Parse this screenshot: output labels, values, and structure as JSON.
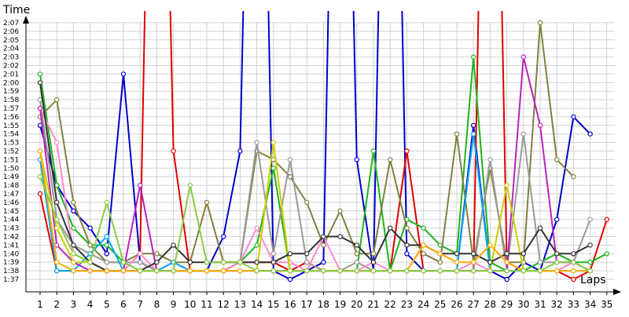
{
  "chart_data": {
    "type": "line",
    "title": "",
    "ylabel": "Time",
    "xlabel": "Laps",
    "x": [
      1,
      2,
      3,
      4,
      5,
      6,
      7,
      8,
      9,
      10,
      11,
      12,
      13,
      14,
      15,
      16,
      17,
      18,
      19,
      20,
      21,
      22,
      23,
      24,
      25,
      26,
      27,
      28,
      29,
      30,
      31,
      32,
      33,
      34,
      35
    ],
    "xlim": [
      1,
      35
    ],
    "y_ticks": [
      "1:37",
      "1:38",
      "1:39",
      "1:40",
      "1:41",
      "1:42",
      "1:43",
      "1:44",
      "1:45",
      "1:46",
      "1:47",
      "1:48",
      "1:49",
      "1:50",
      "1:51",
      "1:52",
      "1:53",
      "1:54",
      "1:55",
      "1:56",
      "1:57",
      "1:58",
      "1:59",
      "2:00",
      "2:01",
      "2:02",
      "2:03",
      "2:04",
      "2:05",
      "2:06",
      "2:07"
    ],
    "ylim_seconds": [
      97,
      127
    ],
    "grid": true,
    "legend": "none",
    "series": [
      {
        "color": "#0000cc",
        "values": [
          115,
          108,
          105,
          103,
          100,
          121,
          99,
          98,
          98,
          98,
          98,
          102,
          112,
          200,
          98,
          97,
          98,
          99,
          200,
          111,
          98,
          200,
          100,
          98,
          98,
          98,
          115,
          98,
          97,
          99,
          98,
          104,
          116,
          114,
          null
        ]
      },
      {
        "color": "#e00000",
        "values": [
          107,
          98,
          98,
          98,
          98,
          98,
          100,
          200,
          112,
          98,
          98,
          98,
          99,
          99,
          99,
          98,
          99,
          98,
          98,
          98,
          98,
          98,
          112,
          98,
          98,
          98,
          98,
          200,
          99,
          98,
          98,
          98,
          97,
          98,
          104
        ]
      },
      {
        "color": "#1eb41e",
        "values": [
          121,
          108,
          103,
          101,
          101,
          99,
          98,
          98,
          98,
          98,
          98,
          98,
          99,
          101,
          110,
          98,
          98,
          98,
          98,
          98,
          112,
          98,
          104,
          103,
          101,
          100,
          123,
          99,
          98,
          98,
          99,
          100,
          99,
          99,
          100
        ]
      },
      {
        "color": "#808040",
        "values": [
          116,
          118,
          106,
          101,
          99,
          99,
          100,
          100,
          99,
          99,
          106,
          99,
          99,
          112,
          111,
          109,
          106,
          101,
          105,
          100,
          100,
          111,
          103,
          100,
          99,
          114,
          99,
          110,
          99,
          99,
          127,
          111,
          109,
          null,
          null
        ]
      },
      {
        "color": "#9a9a9a",
        "values": [
          118,
          104,
          101,
          100,
          99,
          99,
          99,
          98,
          98,
          98,
          98,
          98,
          99,
          113,
          100,
          111,
          99,
          98,
          98,
          99,
          98,
          98,
          98,
          98,
          98,
          98,
          98,
          111,
          98,
          114,
          99,
          99,
          99,
          104,
          null
        ]
      },
      {
        "color": "#ff88cc",
        "values": [
          117,
          113,
          100,
          99,
          98,
          98,
          100,
          98,
          99,
          98,
          98,
          98,
          99,
          103,
          99,
          99,
          98,
          102,
          98,
          98,
          99,
          98,
          98,
          98,
          98,
          98,
          99,
          98,
          98,
          98,
          98,
          98,
          99,
          98,
          null
        ]
      },
      {
        "color": "#00aaee",
        "values": [
          111,
          98,
          98,
          100,
          102,
          98,
          98,
          98,
          99,
          98,
          98,
          98,
          98,
          98,
          98,
          98,
          98,
          98,
          98,
          98,
          98,
          98,
          98,
          98,
          98,
          98,
          114,
          98,
          98,
          98,
          98,
          98,
          98,
          98,
          null
        ]
      },
      {
        "color": "#bb22bb",
        "values": [
          117,
          101,
          99,
          98,
          98,
          98,
          108,
          98,
          98,
          98,
          98,
          98,
          98,
          98,
          98,
          98,
          98,
          98,
          98,
          98,
          98,
          98,
          98,
          98,
          98,
          98,
          98,
          98,
          98,
          123,
          115,
          99,
          99,
          98,
          null
        ]
      },
      {
        "color": "#cccc00",
        "values": [
          112,
          103,
          99,
          99,
          98,
          98,
          98,
          98,
          98,
          98,
          98,
          98,
          98,
          98,
          113,
          98,
          98,
          98,
          98,
          98,
          98,
          98,
          98,
          98,
          98,
          98,
          98,
          98,
          108,
          98,
          98,
          98,
          98,
          98,
          null
        ]
      },
      {
        "color": "#333333",
        "values": [
          120,
          106,
          101,
          99,
          98,
          98,
          98,
          99,
          101,
          99,
          99,
          99,
          99,
          99,
          99,
          100,
          100,
          102,
          102,
          101,
          99,
          103,
          101,
          101,
          100,
          100,
          100,
          99,
          100,
          100,
          103,
          100,
          100,
          101,
          null
        ]
      },
      {
        "color": "#ffaa00",
        "values": [
          112,
          99,
          98,
          98,
          98,
          98,
          98,
          98,
          98,
          98,
          98,
          98,
          98,
          98,
          98,
          98,
          98,
          98,
          98,
          98,
          98,
          98,
          98,
          101,
          100,
          99,
          99,
          101,
          99,
          98,
          98,
          98,
          98,
          98,
          null
        ]
      },
      {
        "color": "#88cc44",
        "values": [
          109,
          104,
          100,
          99,
          106,
          99,
          98,
          98,
          98,
          108,
          99,
          99,
          99,
          98,
          98,
          98,
          98,
          98,
          98,
          98,
          98,
          98,
          98,
          98,
          98,
          98,
          98,
          98,
          98,
          98,
          98,
          99,
          99,
          98,
          null
        ]
      }
    ]
  }
}
